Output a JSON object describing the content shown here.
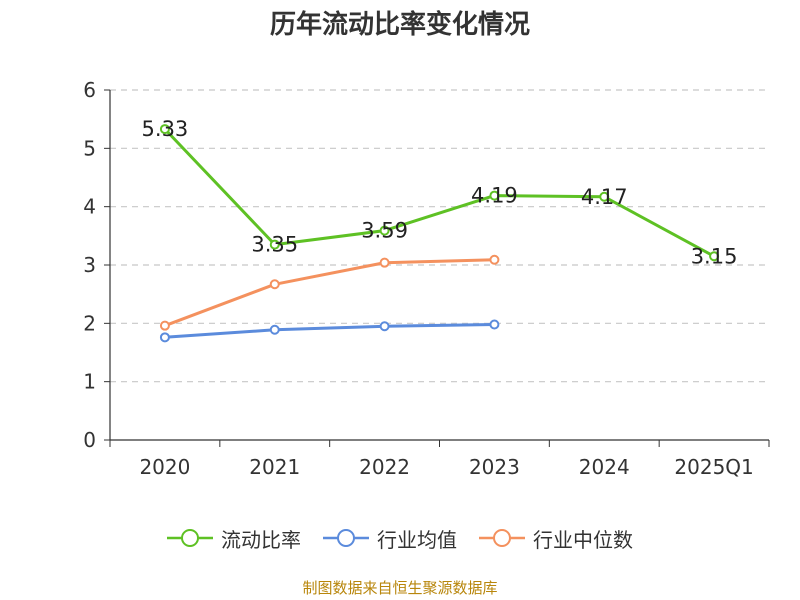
{
  "chart_data": {
    "type": "line",
    "title": "历年流动比率变化情况",
    "categories": [
      "2020",
      "2021",
      "2022",
      "2023",
      "2024",
      "2025Q1"
    ],
    "ylim": [
      0,
      6
    ],
    "yticks": [
      "0",
      "1",
      "2",
      "3",
      "4",
      "5",
      "6"
    ],
    "grid": true,
    "legend_position": "bottom",
    "series": [
      {
        "name": "流动比率",
        "color": "#5ec124",
        "values": [
          5.33,
          3.35,
          3.59,
          4.19,
          4.17,
          3.15
        ],
        "show_labels": true
      },
      {
        "name": "行业均值",
        "color": "#5b8bdc",
        "values": [
          1.76,
          1.89,
          1.95,
          1.98,
          null,
          null
        ],
        "show_labels": false
      },
      {
        "name": "行业中位数",
        "color": "#f4915e",
        "values": [
          1.96,
          2.67,
          3.04,
          3.09,
          null,
          null
        ],
        "show_labels": false
      }
    ]
  },
  "source": "制图数据来自恒生聚源数据库"
}
